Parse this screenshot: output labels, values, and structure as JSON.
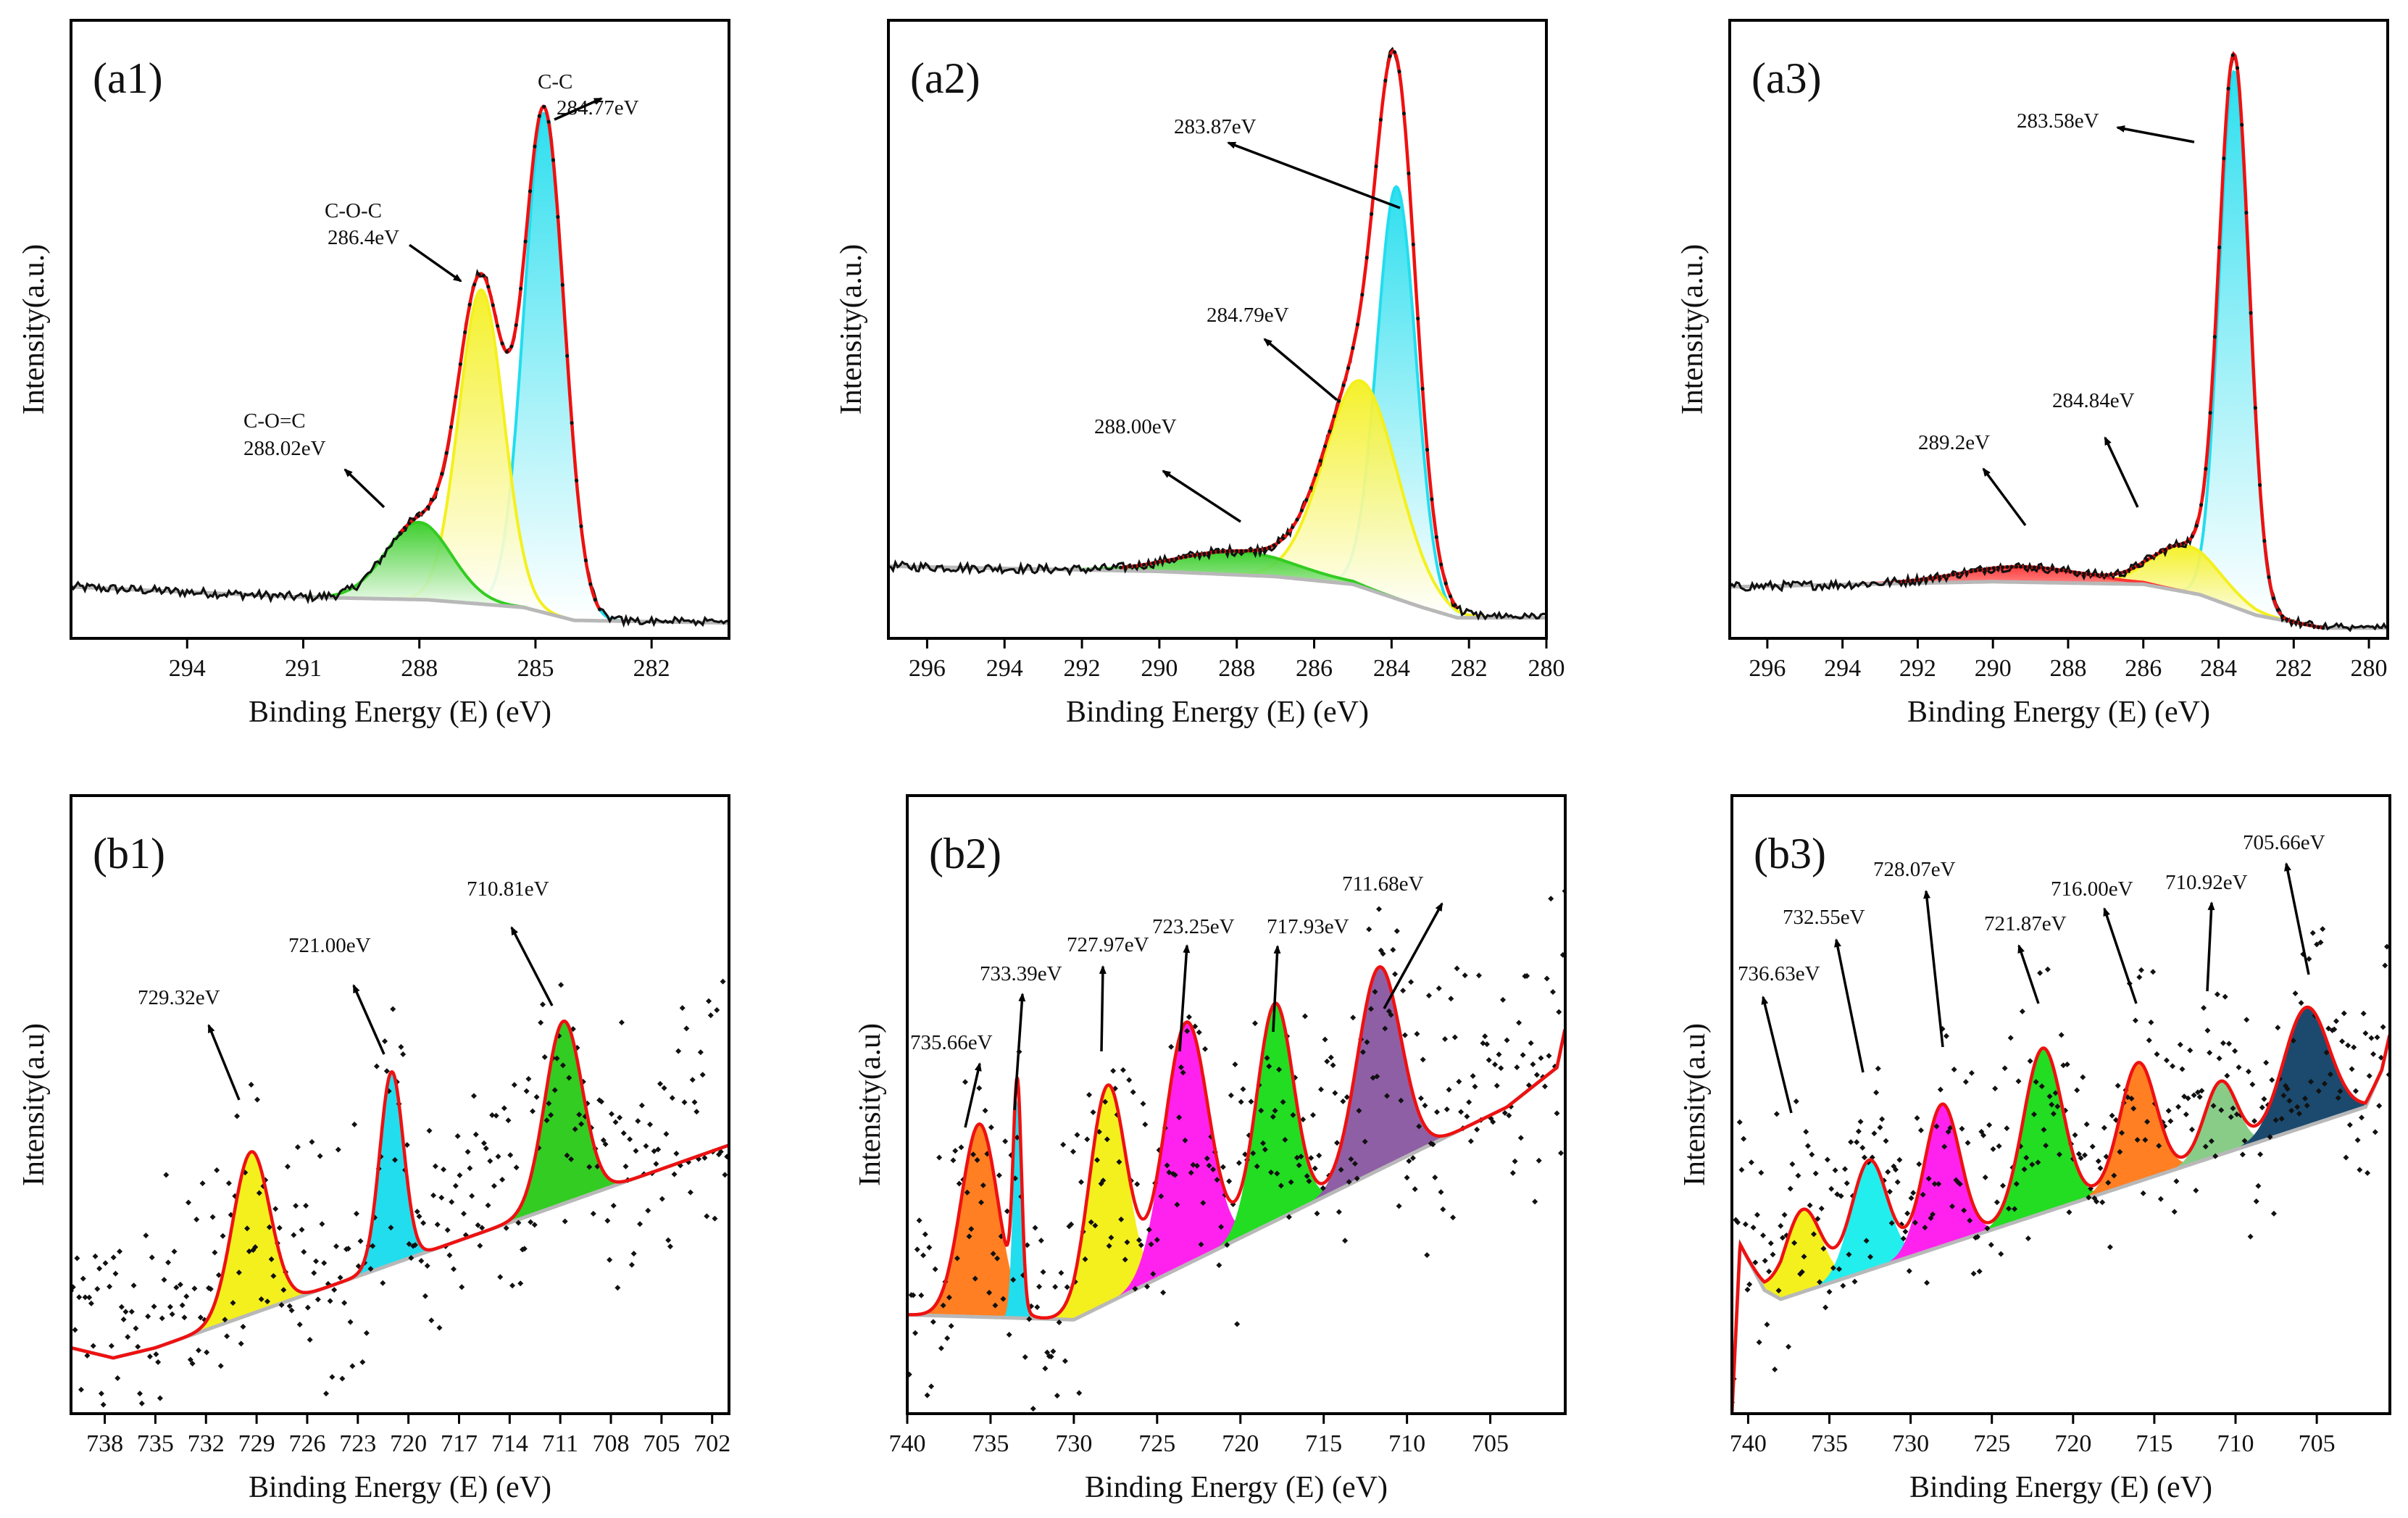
{
  "figure": {
    "x_axis_title": "Binding Energy (E) (eV)",
    "y_axis_title_a": "Intensity(a.u.)",
    "y_axis_title_b": "Intensity(a.u)"
  },
  "chart_data": [
    {
      "id": "a1",
      "type": "line",
      "panel_label": "(a1)",
      "xlabel": "Binding Energy (E) (eV)",
      "ylabel": "Intensity(a.u.)",
      "xlim": [
        297,
        280
      ],
      "ylim": [
        -8,
        112
      ],
      "xticks": [
        "294",
        "291",
        "288",
        "285",
        "282"
      ],
      "background": [
        [
          297,
          2
        ],
        [
          291,
          0
        ],
        [
          287.8,
          -0.5
        ],
        [
          285.3,
          -2
        ],
        [
          284,
          -4.5
        ],
        [
          280,
          -5
        ]
      ],
      "noise_amp": 0.9,
      "fit_to": 288.5,
      "fit_from": 283.3,
      "tail_level": -5,
      "peaks": [
        {
          "center": 284.77,
          "height": 97,
          "sigma": 0.52,
          "color": "#22ddee",
          "label": "C-C",
          "energy": "284.77eV"
        },
        {
          "center": 286.4,
          "height": 61,
          "sigma": 0.58,
          "color": "#f4f01e",
          "label": "C-O-C",
          "energy": "286.4eV"
        },
        {
          "center": 288.02,
          "height": 15,
          "sigma": 0.85,
          "color": "#33cc22",
          "label": "C-O=C",
          "energy": "288.02eV"
        }
      ]
    },
    {
      "id": "a2",
      "type": "line",
      "panel_label": "(a2)",
      "xlabel": "Binding Energy (E) (eV)",
      "ylabel": "Intensity(a.u.)",
      "xlim": [
        297,
        280
      ],
      "ylim": [
        -8,
        112
      ],
      "xticks": [
        "296",
        "294",
        "292",
        "290",
        "288",
        "286",
        "284",
        "282",
        "280"
      ],
      "background": [
        [
          297,
          6
        ],
        [
          290,
          5
        ],
        [
          287,
          4
        ],
        [
          285,
          2.5
        ],
        [
          283.2,
          -2
        ],
        [
          282.3,
          -4
        ],
        [
          280,
          -4
        ]
      ],
      "noise_amp": 0.9,
      "fit_to": 291,
      "fit_from": 282.3,
      "tail_level": -4,
      "peaks": [
        {
          "center": 283.87,
          "height": 80,
          "sigma": 0.5,
          "color": "#22ddee",
          "label": "",
          "energy": "283.87eV"
        },
        {
          "center": 284.79,
          "height": 40,
          "sigma": 0.95,
          "color": "#f4f01e",
          "label": "",
          "energy": "284.79eV"
        },
        {
          "center": 288.0,
          "height": 4.5,
          "sigma": 1.5,
          "color": "#33cc22",
          "label": "",
          "energy": "288.00eV"
        }
      ]
    },
    {
      "id": "a3",
      "type": "line",
      "panel_label": "(a3)",
      "xlabel": "Binding Energy (E) (eV)",
      "ylabel": "Intensity(a.u.)",
      "xlim": [
        297,
        279.5
      ],
      "ylim": [
        -8,
        112
      ],
      "xticks": [
        "296",
        "294",
        "292",
        "290",
        "288",
        "286",
        "284",
        "282",
        "280"
      ],
      "background": [
        [
          297,
          2
        ],
        [
          290,
          3
        ],
        [
          286,
          2.5
        ],
        [
          284.5,
          0.5
        ],
        [
          283,
          -3.5
        ],
        [
          281.2,
          -6
        ],
        [
          279.5,
          -6
        ]
      ],
      "noise_amp": 0.9,
      "fit_to": 292.5,
      "fit_from": 281.2,
      "tail_level": -6,
      "peaks": [
        {
          "center": 283.58,
          "height": 104,
          "sigma": 0.4,
          "color": "#22ddee",
          "label": "",
          "energy": "283.58eV"
        },
        {
          "center": 284.84,
          "height": 9,
          "sigma": 0.9,
          "color": "#f4f01e",
          "label": "",
          "energy": "284.84eV"
        },
        {
          "center": 289.2,
          "height": 3,
          "sigma": 1.6,
          "color": "#ff3333",
          "label": "",
          "energy": "289.2eV"
        }
      ]
    },
    {
      "id": "b1",
      "type": "scatter",
      "panel_label": "(b1)",
      "xlabel": "Binding Energy (E) (eV)",
      "ylabel": "Intensity(a.u)",
      "xlim": [
        740,
        701
      ],
      "ylim": [
        -12,
        110
      ],
      "xticks": [
        "738",
        "735",
        "732",
        "729",
        "726",
        "723",
        "720",
        "717",
        "714",
        "711",
        "708",
        "705",
        "702"
      ],
      "background": [
        [
          740,
          1
        ],
        [
          737.5,
          -1
        ],
        [
          735,
          1
        ],
        [
          701,
          41
        ]
      ],
      "scatter_spread": 30,
      "scatter_every": 0.12,
      "peaks": [
        {
          "center": 729.32,
          "height": 32,
          "sigma": 1.1,
          "color": "#f4f01e",
          "energy": "729.32eV"
        },
        {
          "center": 721.0,
          "height": 38,
          "sigma": 0.7,
          "color": "#22ddee",
          "energy": "721.00eV"
        },
        {
          "center": 710.81,
          "height": 36,
          "sigma": 1.1,
          "color": "#33cc22",
          "energy": "710.81eV"
        }
      ]
    },
    {
      "id": "b2",
      "type": "scatter",
      "panel_label": "(b2)",
      "xlabel": "Binding Energy (E) (eV)",
      "ylabel": "Intensity(a.u)",
      "xlim": [
        740,
        700.5
      ],
      "ylim": [
        -15,
        110
      ],
      "xticks": [
        "740",
        "735",
        "730",
        "725",
        "720",
        "715",
        "710",
        "705"
      ],
      "background": [
        [
          740,
          5
        ],
        [
          730,
          4
        ],
        [
          704,
          47
        ],
        [
          701,
          55
        ],
        [
          700.5,
          63
        ]
      ],
      "scatter_spread": 32,
      "scatter_every": 0.12,
      "peaks": [
        {
          "center": 735.66,
          "height": 39,
          "sigma": 1.1,
          "color": "#ff7f22",
          "energy": "735.66eV"
        },
        {
          "center": 733.39,
          "height": 44,
          "sigma": 0.25,
          "color": "#22ddee",
          "energy": "733.39eV"
        },
        {
          "center": 727.97,
          "height": 44,
          "sigma": 1.1,
          "color": "#f4f01e",
          "energy": "727.97eV"
        },
        {
          "center": 723.25,
          "height": 49,
          "sigma": 1.3,
          "color": "#ff22ee",
          "energy": "723.25eV"
        },
        {
          "center": 717.93,
          "height": 44,
          "sigma": 1.1,
          "color": "#22dd22",
          "energy": "717.93eV"
        },
        {
          "center": 711.68,
          "height": 41,
          "sigma": 1.3,
          "color": "#8f5fa5",
          "energy": "711.68eV"
        }
      ]
    },
    {
      "id": "b3",
      "type": "scatter",
      "panel_label": "(b3)",
      "xlabel": "Binding Energy (E) (eV)",
      "ylabel": "Intensity(a.u)",
      "xlim": [
        741,
        700.5
      ],
      "ylim": [
        -25,
        110
      ],
      "xticks": [
        "740",
        "735",
        "730",
        "725",
        "720",
        "715",
        "710",
        "705"
      ],
      "background": [
        [
          741,
          -25
        ],
        [
          740.5,
          12
        ],
        [
          739,
          2
        ],
        [
          738,
          0
        ],
        [
          702,
          42
        ],
        [
          701,
          50
        ],
        [
          700.5,
          58
        ]
      ],
      "scatter_spread": 32,
      "scatter_every": 0.12,
      "peaks": [
        {
          "center": 736.63,
          "height": 18,
          "sigma": 1.1,
          "color": "#f4f01e",
          "energy": "736.63eV"
        },
        {
          "center": 732.55,
          "height": 24,
          "sigma": 1.1,
          "color": "#22eeee",
          "energy": "732.55eV"
        },
        {
          "center": 728.07,
          "height": 31,
          "sigma": 1.1,
          "color": "#ff22ee",
          "energy": "728.07eV"
        },
        {
          "center": 721.87,
          "height": 36,
          "sigma": 1.2,
          "color": "#22dd22",
          "energy": "721.87eV"
        },
        {
          "center": 716.0,
          "height": 26,
          "sigma": 1.1,
          "color": "#ff7f22",
          "energy": "716.00eV"
        },
        {
          "center": 710.92,
          "height": 16,
          "sigma": 1.0,
          "color": "#88cc88",
          "energy": "710.92eV"
        },
        {
          "center": 705.66,
          "height": 26,
          "sigma": 1.4,
          "color": "#1b4a6e",
          "energy": "705.66eV"
        }
      ]
    }
  ]
}
